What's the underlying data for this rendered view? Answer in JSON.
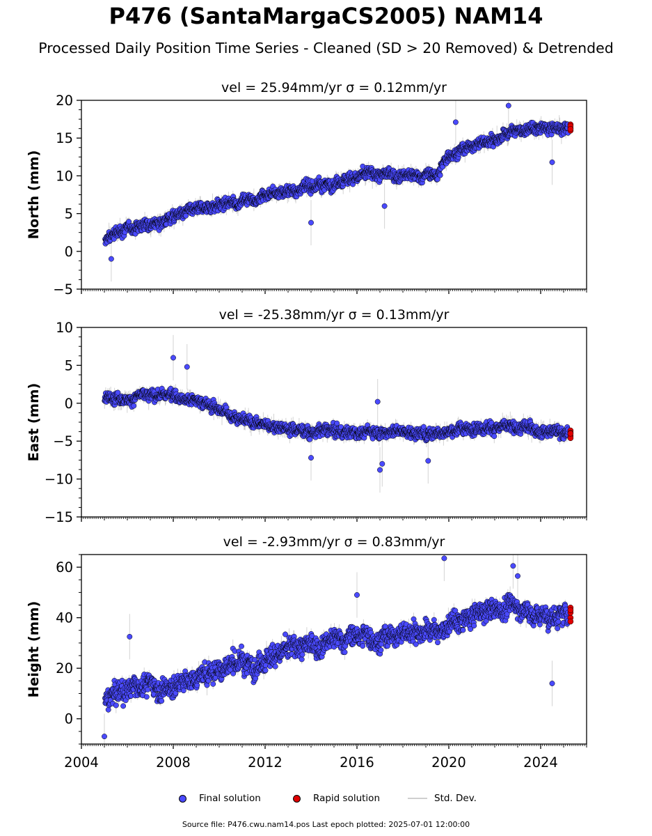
{
  "title": "P476 (SantaMargaCS2005) NAM14",
  "subtitle": "Processed Daily Position Time Series - Cleaned (SD > 20 Removed) & Detrended",
  "legend": {
    "final": "Final solution",
    "rapid": "Rapid solution",
    "std": "Std. Dev."
  },
  "footer": "Source file: P476.cwu.nam14.pos  Last epoch plotted: 2025-07-01 12:00:00",
  "colors": {
    "final": "#4a4aff",
    "rapid": "#e00000",
    "std_dev": "#808080",
    "marker_edge": "#000000"
  },
  "chart_data": [
    {
      "type": "scatter",
      "title": "vel = 25.94mm/yr   σ = 0.12mm/yr",
      "ylabel": "North (mm)",
      "xlim": [
        2004.0,
        2026.0
      ],
      "ylim": [
        -5,
        20
      ],
      "yticks": [
        -5,
        0,
        5,
        10,
        15,
        20
      ],
      "xticks": [
        2004,
        2008,
        2012,
        2016,
        2020,
        2024
      ],
      "show_xticklabels": false,
      "series": [
        {
          "key": "final",
          "x": [
            2005.0,
            2005.5,
            2006.0,
            2006.5,
            2007.0,
            2007.5,
            2008.0,
            2008.5,
            2009.0,
            2009.5,
            2010.0,
            2010.5,
            2011.0,
            2011.5,
            2012.0,
            2012.5,
            2013.0,
            2013.5,
            2014.0,
            2014.5,
            2015.0,
            2015.5,
            2016.0,
            2016.5,
            2017.0,
            2017.5,
            2018.0,
            2018.5,
            2019.0,
            2019.5,
            2020.0,
            2020.5,
            2021.0,
            2021.5,
            2022.0,
            2022.5,
            2023.0,
            2023.5,
            2024.0,
            2024.5,
            2025.0
          ],
          "y": [
            1.2,
            2.4,
            3.0,
            3.4,
            3.7,
            4.1,
            4.6,
            5.1,
            5.4,
            5.8,
            6.1,
            6.4,
            6.7,
            7.1,
            7.4,
            7.7,
            8.0,
            8.3,
            8.6,
            8.9,
            9.2,
            9.6,
            9.9,
            10.2,
            10.0,
            10.3,
            10.1,
            9.9,
            10.2,
            10.1,
            13.0,
            13.4,
            14.0,
            14.5,
            14.9,
            15.5,
            16.1,
            16.0,
            16.3,
            16.1,
            16.2
          ],
          "scatter": 0.9
        },
        {
          "key": "rapid",
          "x": [
            2025.2,
            2025.26,
            2025.32,
            2025.38,
            2025.44
          ],
          "y": [
            16.3,
            16.8,
            16.0,
            16.6,
            16.2
          ],
          "scatter": 0
        },
        {
          "key": "outliers",
          "x": [
            2022.6,
            2024.5,
            2020.3,
            2005.3,
            2014.0,
            2017.2
          ],
          "y": [
            19.3,
            11.8,
            17.1,
            -1.0,
            3.8,
            6.0
          ],
          "scatter": 0
        }
      ]
    },
    {
      "type": "scatter",
      "title": "vel = -25.38mm/yr   σ = 0.13mm/yr",
      "ylabel": "East (mm)",
      "xlim": [
        2004.0,
        2026.0
      ],
      "ylim": [
        -15,
        10
      ],
      "yticks": [
        -15,
        -10,
        -5,
        0,
        5,
        10
      ],
      "xticks": [
        2004,
        2008,
        2012,
        2016,
        2020,
        2024
      ],
      "show_xticklabels": false,
      "series": [
        {
          "key": "final",
          "x": [
            2005.0,
            2005.5,
            2006.0,
            2006.5,
            2007.0,
            2007.5,
            2008.0,
            2008.5,
            2009.0,
            2009.5,
            2010.0,
            2010.5,
            2011.0,
            2011.5,
            2012.0,
            2012.5,
            2013.0,
            2013.5,
            2014.0,
            2014.5,
            2015.0,
            2015.5,
            2016.0,
            2016.5,
            2017.0,
            2017.5,
            2018.0,
            2018.5,
            2019.0,
            2019.5,
            2020.0,
            2020.5,
            2021.0,
            2021.5,
            2022.0,
            2022.5,
            2023.0,
            2023.5,
            2024.0,
            2024.5,
            2025.0
          ],
          "y": [
            0.5,
            1.0,
            0.6,
            1.0,
            0.8,
            1.2,
            1.0,
            0.7,
            0.5,
            -0.2,
            -0.8,
            -1.5,
            -2.0,
            -2.5,
            -2.8,
            -3.0,
            -3.2,
            -3.5,
            -3.8,
            -3.6,
            -3.7,
            -3.8,
            -3.9,
            -3.7,
            -3.8,
            -3.6,
            -3.7,
            -3.9,
            -4.0,
            -3.8,
            -3.6,
            -3.5,
            -3.3,
            -3.0,
            -3.2,
            -3.3,
            -3.4,
            -3.2,
            -3.5,
            -3.6,
            -3.8
          ],
          "scatter": 0.9
        },
        {
          "key": "rapid",
          "x": [
            2025.2,
            2025.26,
            2025.32,
            2025.38,
            2025.44
          ],
          "y": [
            -3.6,
            -4.3,
            -3.9,
            -4.6,
            -4.0
          ],
          "scatter": 0
        },
        {
          "key": "outliers",
          "x": [
            2008.0,
            2008.6,
            2017.0,
            2017.1,
            2016.9,
            2019.1,
            2014.0
          ],
          "y": [
            6.0,
            4.8,
            -8.8,
            -8.0,
            0.2,
            -7.6,
            -7.2
          ],
          "scatter": 0
        }
      ]
    },
    {
      "type": "scatter",
      "title": "vel = -2.93mm/yr   σ = 0.83mm/yr",
      "ylabel": "Height (mm)",
      "xlim": [
        2004.0,
        2026.0
      ],
      "ylim": [
        -10,
        65
      ],
      "yticks": [
        0,
        20,
        40,
        60
      ],
      "xticks": [
        2004,
        2008,
        2012,
        2016,
        2020,
        2024
      ],
      "xticklabels": [
        "2004",
        "2008",
        "2012",
        "2016",
        "2020",
        "2024"
      ],
      "show_xticklabels": true,
      "series": [
        {
          "key": "final",
          "x": [
            2005.0,
            2005.5,
            2006.0,
            2006.5,
            2007.0,
            2007.5,
            2008.0,
            2008.5,
            2009.0,
            2009.5,
            2010.0,
            2010.5,
            2011.0,
            2011.5,
            2012.0,
            2012.5,
            2013.0,
            2013.5,
            2014.0,
            2014.5,
            2015.0,
            2015.5,
            2016.0,
            2016.5,
            2017.0,
            2017.5,
            2018.0,
            2018.5,
            2019.0,
            2019.5,
            2020.0,
            2020.5,
            2021.0,
            2021.5,
            2022.0,
            2022.5,
            2023.0,
            2023.5,
            2024.0,
            2024.5,
            2025.0
          ],
          "y": [
            6.0,
            10.0,
            12.0,
            13.0,
            14.0,
            12.0,
            13.0,
            15.0,
            16.0,
            18.0,
            20.0,
            22.0,
            23.0,
            22.0,
            24.0,
            26.0,
            27.0,
            28.0,
            29.0,
            30.0,
            31.0,
            32.0,
            33.0,
            33.0,
            32.0,
            33.0,
            34.0,
            35.0,
            35.0,
            34.0,
            37.0,
            38.0,
            40.0,
            42.0,
            43.0,
            44.0,
            45.0,
            42.0,
            41.0,
            40.0,
            41.0
          ],
          "scatter": 5.0
        },
        {
          "key": "rapid",
          "x": [
            2025.2,
            2025.26,
            2025.32,
            2025.38,
            2025.44
          ],
          "y": [
            44.0,
            40.0,
            42.0,
            38.5,
            43.0
          ],
          "scatter": 0
        },
        {
          "key": "outliers",
          "x": [
            2019.8,
            2024.5,
            2022.8,
            2005.0,
            2006.1,
            2023.0,
            2016.0
          ],
          "y": [
            63.5,
            14.0,
            60.5,
            -7.0,
            32.5,
            56.5,
            49.0
          ],
          "scatter": 0
        }
      ]
    }
  ]
}
